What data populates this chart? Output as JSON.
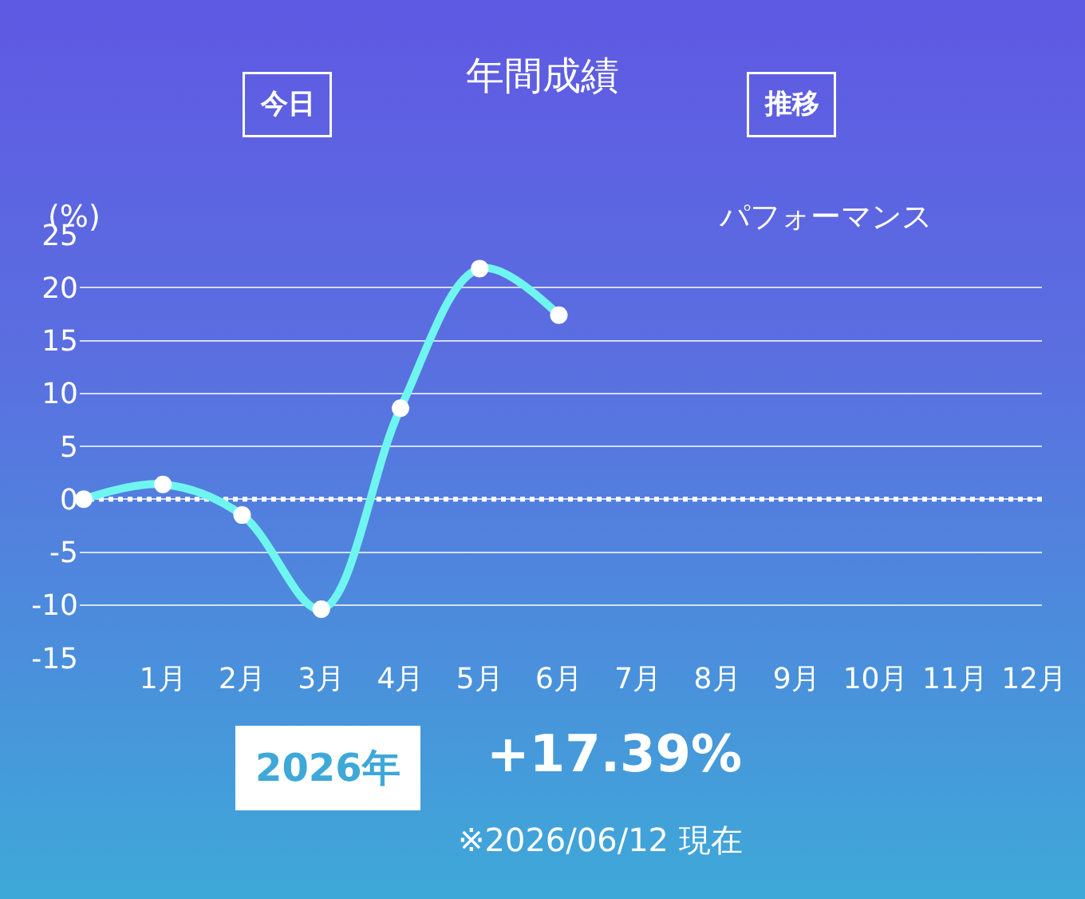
{
  "chart_data": {
    "type": "line",
    "title": "年間成績",
    "ylabel": "(%)",
    "categories": [
      null,
      "1月",
      "2月",
      "3月",
      "4月",
      "5月",
      "6月",
      "7月",
      "8月",
      "9月",
      "10月",
      "11月",
      "12月"
    ],
    "series": [
      {
        "color": "#6ff5f0",
        "values": [
          0,
          1.4,
          -1.5,
          -10.4,
          8.6,
          21.8,
          17.39,
          null,
          null,
          null,
          null,
          null,
          null
        ]
      }
    ],
    "ylim": [
      -15,
      25
    ],
    "yticks": [
      -15,
      -10,
      -5,
      0,
      5,
      10,
      15,
      20,
      25
    ],
    "grid": "y",
    "marker": "circle",
    "line_style": "solid",
    "legend": false,
    "ref_lines": [
      {
        "axis": "y",
        "value": 0,
        "color": "#ffffff",
        "line_style": "dotted"
      }
    ],
    "annotations": [
      "今日",
      "推移",
      "パフォーマンス",
      "2026年",
      "+17.39%",
      "※2026/06/12 現在"
    ]
  }
}
